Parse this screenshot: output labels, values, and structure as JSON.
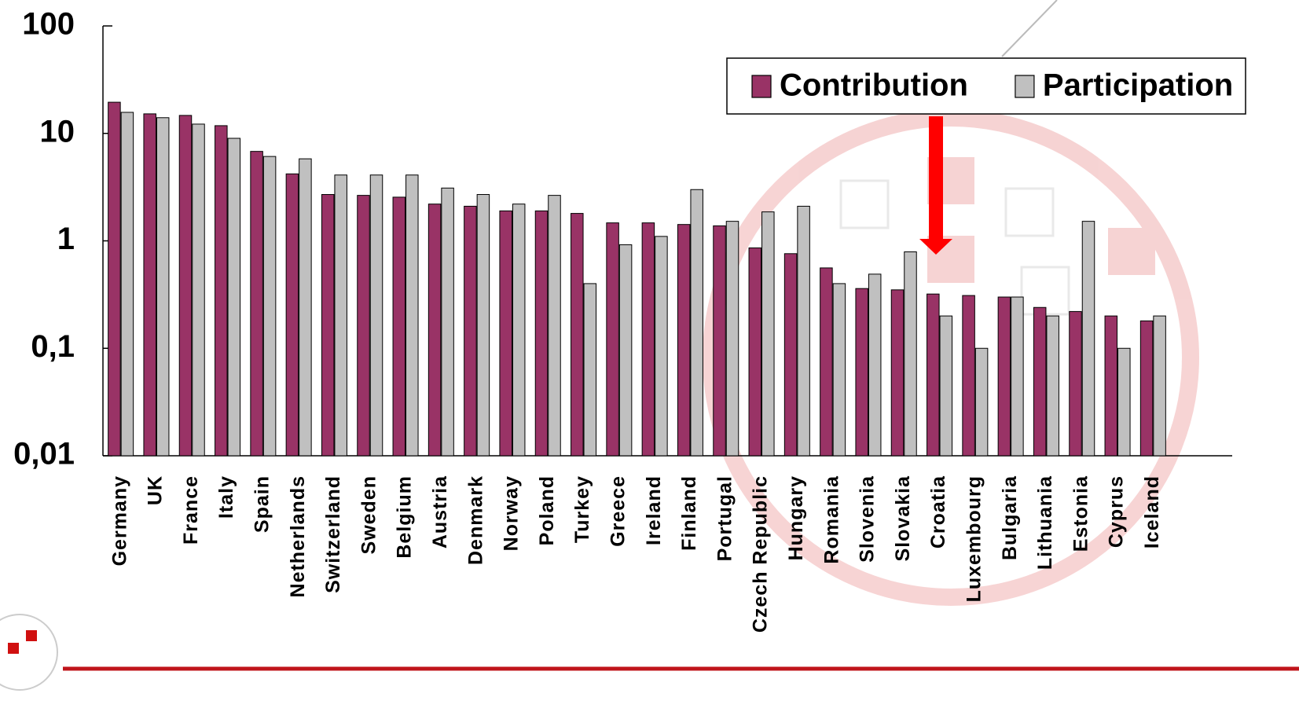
{
  "chart_data": {
    "type": "bar",
    "log_scale": true,
    "categories": [
      "Germany",
      "UK",
      "France",
      "Italy",
      "Spain",
      "Netherlands",
      "Switzerland",
      "Sweden",
      "Belgium",
      "Austria",
      "Denmark",
      "Norway",
      "Poland",
      "Turkey",
      "Greece",
      "Ireland",
      "Finland",
      "Portugal",
      "Czech Republic",
      "Hungary",
      "Romania",
      "Slovenia",
      "Slovakia",
      "Croatia",
      "Luxembourg",
      "Bulgaria",
      "Lithuania",
      "Estonia",
      "Cyprus",
      "Iceland"
    ],
    "series": [
      {
        "name": "Contribution",
        "color": "#993366",
        "values": [
          19.5,
          15.2,
          14.7,
          11.8,
          6.8,
          4.2,
          2.7,
          2.65,
          2.55,
          2.2,
          2.1,
          1.9,
          1.9,
          1.8,
          1.47,
          1.47,
          1.42,
          1.38,
          0.86,
          0.76,
          0.56,
          0.36,
          0.35,
          0.32,
          0.31,
          0.3,
          0.24,
          0.22,
          0.2,
          0.18
        ]
      },
      {
        "name": "Participation",
        "color": "#c0c0c0",
        "values": [
          15.7,
          14,
          12.2,
          9,
          6.1,
          5.8,
          4.1,
          4.1,
          4.1,
          3.1,
          2.7,
          2.2,
          2.65,
          0.4,
          0.92,
          1.1,
          3,
          1.52,
          1.86,
          2.1,
          0.4,
          0.49,
          0.79,
          0.2,
          0.1,
          0.3,
          0.2,
          1.52,
          0.1,
          0.2
        ]
      }
    ],
    "ylim": [
      0.01,
      100
    ],
    "yticks": [
      100,
      10,
      1,
      {
        "value": 0.1,
        "label": "0,1"
      },
      {
        "value": 0.01,
        "label": "0,01"
      }
    ],
    "legend": "top-right"
  }
}
